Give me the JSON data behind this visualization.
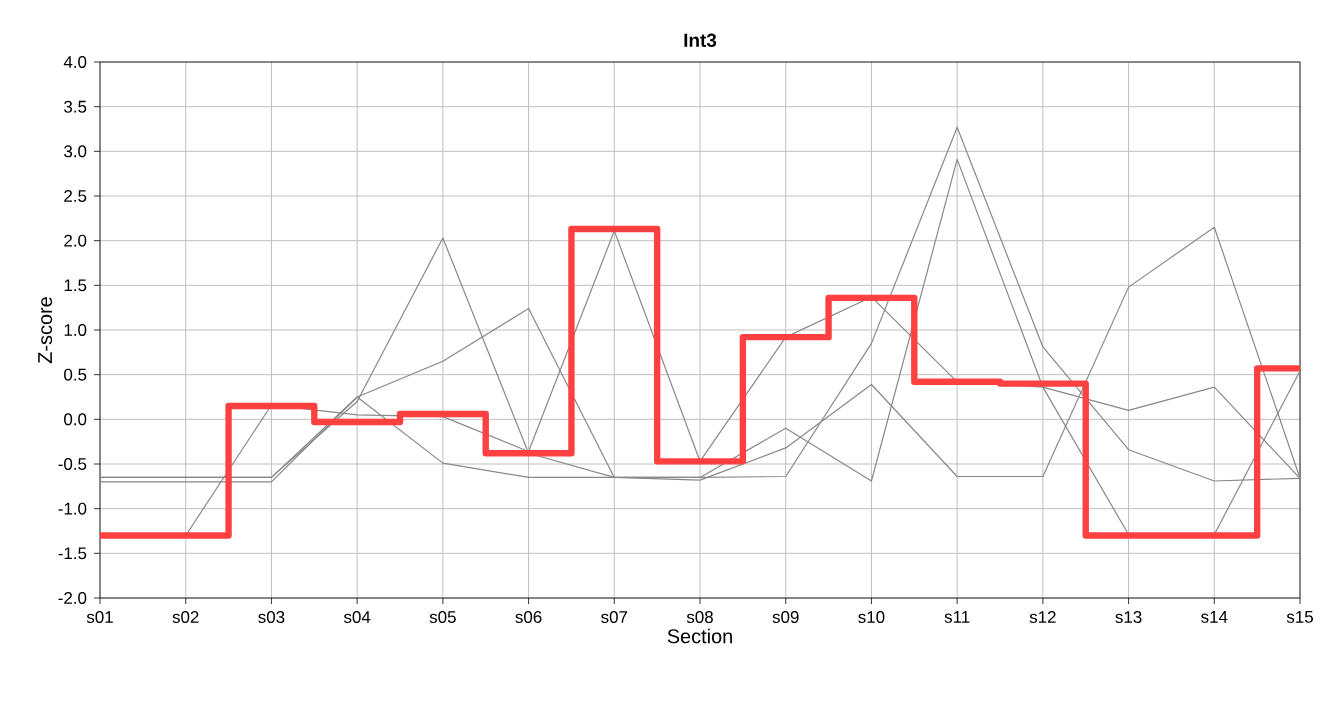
{
  "chart_data": {
    "type": "line",
    "title": "Int3",
    "xlabel": "Section",
    "ylabel": "Z-score",
    "categories": [
      "s01",
      "s02",
      "s03",
      "s04",
      "s05",
      "s06",
      "s07",
      "s08",
      "s09",
      "s10",
      "s11",
      "s12",
      "s13",
      "s14",
      "s15"
    ],
    "ylim": [
      -2,
      4
    ],
    "yticks": [
      {
        "value": -2,
        "label": "-2.0"
      },
      {
        "value": -1.5,
        "label": "-1.5"
      },
      {
        "value": -1,
        "label": "-1.0"
      },
      {
        "value": -0.5,
        "label": "-0.5"
      },
      {
        "value": 0,
        "label": "0.0"
      },
      {
        "value": 0.5,
        "label": "0.5"
      },
      {
        "value": 1,
        "label": "1.0"
      },
      {
        "value": 1.5,
        "label": "1.5"
      },
      {
        "value": 2,
        "label": "2.0"
      },
      {
        "value": 2.5,
        "label": "2.5"
      },
      {
        "value": 3,
        "label": "3.0"
      },
      {
        "value": 3.5,
        "label": "3.5"
      },
      {
        "value": 4,
        "label": "4.0"
      }
    ],
    "grid": true,
    "marker": "none",
    "line_style": "solid",
    "series": [
      {
        "color": "#888888",
        "values": [
          -1.3,
          -1.3,
          0.16,
          0.05,
          0.03,
          -0.36,
          2.11,
          -0.47,
          0.92,
          1.37,
          0.42,
          0.36,
          0.1,
          0.36,
          -0.66
        ]
      },
      {
        "color": "#888888",
        "values": [
          -0.65,
          -0.65,
          -0.65,
          0.2,
          2.03,
          -0.38,
          -0.65,
          -0.65,
          -0.1,
          -0.69,
          2.91,
          0.36,
          -1.29,
          -1.29,
          0.54
        ]
      },
      {
        "color": "#888888",
        "values": [
          -0.7,
          -0.7,
          -0.7,
          0.25,
          0.65,
          1.24,
          -0.65,
          -0.68,
          -0.32,
          0.39,
          -0.64,
          -0.64,
          1.48,
          2.15,
          -0.66
        ]
      },
      {
        "color": "#888888",
        "values": [
          -0.65,
          -0.65,
          -0.65,
          0.25,
          -0.49,
          -0.65,
          -0.65,
          -0.65,
          -0.64,
          0.85,
          3.27,
          0.81,
          -0.34,
          -0.69,
          -0.66
        ]
      },
      {
        "type": "step",
        "color": "#ff4040",
        "values": [
          -1.3,
          -1.3,
          0.15,
          -0.03,
          0.06,
          -0.38,
          2.13,
          -0.47,
          0.92,
          1.36,
          0.42,
          0.4,
          -1.3,
          -1.3,
          0.57
        ]
      }
    ]
  }
}
